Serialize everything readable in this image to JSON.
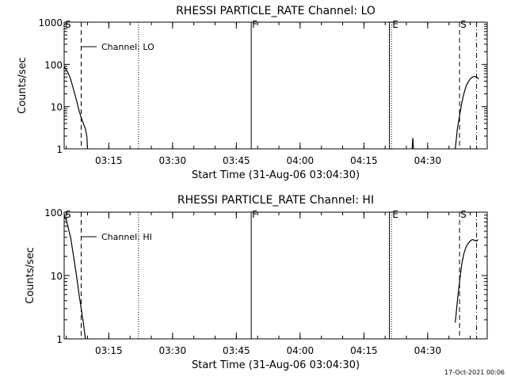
{
  "footer": {
    "date_stamp": "17-Oct-2021 00:06"
  },
  "chart_data": [
    {
      "type": "line",
      "title": "RHESSI PARTICLE_RATE Channel: LO",
      "xlabel": "Start Time (31-Aug-06 03:04:30)",
      "ylabel": "Counts/sec",
      "y_scale": "log",
      "ylim": [
        1,
        1000
      ],
      "xlim": [
        "03:04:30",
        "04:44:00"
      ],
      "y_ticks": [
        {
          "value": 1,
          "label": "1"
        },
        {
          "value": 10,
          "label": "10"
        },
        {
          "value": 100,
          "label": "100"
        },
        {
          "value": 1000,
          "label": "1000"
        }
      ],
      "x_ticks": [
        {
          "value": "03:15",
          "label": "03:15"
        },
        {
          "value": "03:30",
          "label": "03:30"
        },
        {
          "value": "03:45",
          "label": "03:45"
        },
        {
          "value": "04:00",
          "label": "04:00"
        },
        {
          "value": "04:15",
          "label": "04:15"
        },
        {
          "value": "04:30",
          "label": "04:30"
        }
      ],
      "legend": {
        "label": "Channel: LO",
        "placement": "top-left"
      },
      "markers": [
        {
          "time": "03:04:30",
          "label": "S",
          "style": "solid"
        },
        {
          "time": "03:08:30",
          "label": "",
          "style": "dashed"
        },
        {
          "time": "03:22:00",
          "label": "",
          "style": "dotted"
        },
        {
          "time": "03:48:30",
          "label": "F",
          "style": "solid"
        },
        {
          "time": "04:21:00",
          "label": "",
          "style": "solid"
        },
        {
          "time": "04:21:30",
          "label": "E",
          "style": "dotted"
        },
        {
          "time": "04:37:30",
          "label": "S",
          "style": "dashed"
        },
        {
          "time": "04:41:30",
          "label": "",
          "style": "dashdot"
        }
      ],
      "series": [
        {
          "points": [
            [
              "03:04:30",
              88
            ],
            [
              "03:05:00",
              75
            ],
            [
              "03:05:30",
              60
            ],
            [
              "03:06:00",
              45
            ],
            [
              "03:06:30",
              30
            ],
            [
              "03:07:00",
              20
            ],
            [
              "03:07:30",
              13
            ],
            [
              "03:08:00",
              8
            ],
            [
              "03:08:30",
              5.5
            ],
            [
              "03:09:00",
              4
            ],
            [
              "03:09:30",
              3
            ],
            [
              "03:09:50",
              2
            ],
            [
              "03:10:00",
              1
            ]
          ]
        },
        {
          "points": [
            [
              "04:26:20",
              1
            ],
            [
              "04:26:30",
              1.8
            ],
            [
              "04:26:40",
              1
            ]
          ]
        },
        {
          "points": [
            [
              "04:36:30",
              1
            ],
            [
              "04:37:00",
              3
            ],
            [
              "04:37:30",
              6
            ],
            [
              "04:38:00",
              12
            ],
            [
              "04:38:30",
              20
            ],
            [
              "04:39:00",
              30
            ],
            [
              "04:39:30",
              38
            ],
            [
              "04:40:00",
              45
            ],
            [
              "04:40:30",
              50
            ],
            [
              "04:41:00",
              52
            ],
            [
              "04:41:30",
              50
            ],
            [
              "04:42:00",
              45
            ]
          ]
        }
      ]
    },
    {
      "type": "line",
      "title": "RHESSI PARTICLE_RATE Channel: HI",
      "xlabel": "Start Time (31-Aug-06 03:04:30)",
      "ylabel": "Counts/sec",
      "y_scale": "log",
      "ylim": [
        1,
        100
      ],
      "xlim": [
        "03:04:30",
        "04:44:00"
      ],
      "y_ticks": [
        {
          "value": 1,
          "label": "1"
        },
        {
          "value": 10,
          "label": "10"
        },
        {
          "value": 100,
          "label": "100"
        }
      ],
      "x_ticks": [
        {
          "value": "03:15",
          "label": "03:15"
        },
        {
          "value": "03:30",
          "label": "03:30"
        },
        {
          "value": "03:45",
          "label": "03:45"
        },
        {
          "value": "04:00",
          "label": "04:00"
        },
        {
          "value": "04:15",
          "label": "04:15"
        },
        {
          "value": "04:30",
          "label": "04:30"
        }
      ],
      "legend": {
        "label": "Channel: HI",
        "placement": "top-left"
      },
      "markers": [
        {
          "time": "03:04:30",
          "label": "S",
          "style": "solid"
        },
        {
          "time": "03:08:30",
          "label": "",
          "style": "dashed"
        },
        {
          "time": "03:22:00",
          "label": "",
          "style": "dotted"
        },
        {
          "time": "03:48:30",
          "label": "F",
          "style": "solid"
        },
        {
          "time": "04:21:00",
          "label": "",
          "style": "solid"
        },
        {
          "time": "04:21:30",
          "label": "E",
          "style": "dotted"
        },
        {
          "time": "04:37:30",
          "label": "S",
          "style": "dashed"
        },
        {
          "time": "04:41:30",
          "label": "",
          "style": "dashdot"
        }
      ],
      "series": [
        {
          "points": [
            [
              "03:04:30",
              90
            ],
            [
              "03:05:00",
              75
            ],
            [
              "03:05:30",
              55
            ],
            [
              "03:06:00",
              40
            ],
            [
              "03:06:30",
              25
            ],
            [
              "03:07:00",
              15
            ],
            [
              "03:07:30",
              9
            ],
            [
              "03:08:00",
              5
            ],
            [
              "03:08:30",
              3
            ],
            [
              "03:09:00",
              1.8
            ],
            [
              "03:09:30",
              1
            ]
          ]
        },
        {
          "points": [
            [
              "04:36:30",
              1.8
            ],
            [
              "04:37:00",
              4
            ],
            [
              "04:37:30",
              8
            ],
            [
              "04:38:00",
              15
            ],
            [
              "04:38:30",
              22
            ],
            [
              "04:39:00",
              28
            ],
            [
              "04:39:30",
              32
            ],
            [
              "04:40:00",
              35
            ],
            [
              "04:40:30",
              37
            ],
            [
              "04:41:00",
              36
            ],
            [
              "04:41:30",
              35
            ],
            [
              "04:41:50",
              37
            ]
          ]
        }
      ]
    }
  ]
}
